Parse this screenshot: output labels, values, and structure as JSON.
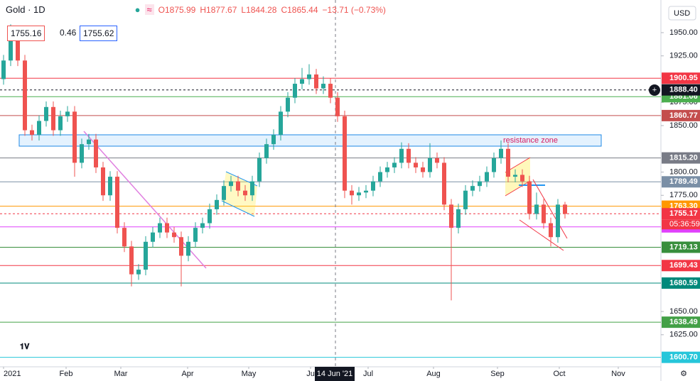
{
  "chart_data": {
    "type": "candlestick",
    "title": "Gold · 1D",
    "ohlc_legend": {
      "open": "O1875.99",
      "high": "H1877.67",
      "low": "L1844.28",
      "close": "C1865.44",
      "change": "−13.71 (−0.73%)"
    },
    "price_boxes": {
      "bid": "1755.16",
      "spread": "0.46",
      "ask": "1755.62"
    },
    "currency": "USD",
    "annotation": "resistance zone",
    "crosshair_date": "14 Jun '21",
    "countdown": "05:36:59",
    "up_color": "#26a69a",
    "down_color": "#ef5350",
    "open": [
      1900,
      1920,
      1945,
      1920,
      1845,
      1840,
      1855,
      1870,
      1845,
      1860,
      1865,
      1810,
      1830,
      1835,
      1805,
      1775,
      1795,
      1740,
      1720,
      1690,
      1695,
      1725,
      1735,
      1745,
      1735,
      1730,
      1710,
      1725,
      1740,
      1745,
      1760,
      1770,
      1785,
      1790,
      1780,
      1775,
      1790,
      1815,
      1830,
      1840,
      1865,
      1880,
      1895,
      1900,
      1905,
      1890,
      1895,
      1880,
      1860,
      1780,
      1775,
      1778,
      1780,
      1790,
      1800,
      1805,
      1810,
      1825,
      1810,
      1805,
      1800,
      1815,
      1810,
      1765,
      1740,
      1760,
      1780,
      1785,
      1790,
      1800,
      1815,
      1825,
      1795,
      1797,
      1790,
      1755,
      1765,
      1745,
      1730,
      1765
    ],
    "high": [
      1926,
      1959,
      1951,
      1926,
      1851,
      1861,
      1876,
      1876,
      1866,
      1871,
      1871,
      1836,
      1841,
      1841,
      1811,
      1801,
      1801,
      1746,
      1726,
      1701,
      1731,
      1741,
      1751,
      1751,
      1741,
      1736,
      1731,
      1746,
      1751,
      1766,
      1776,
      1791,
      1796,
      1796,
      1786,
      1796,
      1821,
      1836,
      1846,
      1871,
      1886,
      1901,
      1912,
      1916,
      1911,
      1903,
      1901,
      1886,
      1866,
      1786,
      1784,
      1786,
      1796,
      1806,
      1811,
      1816,
      1832,
      1831,
      1816,
      1811,
      1831,
      1821,
      1816,
      1771,
      1766,
      1786,
      1791,
      1796,
      1806,
      1821,
      1834,
      1831,
      1803,
      1803,
      1796,
      1778,
      1771,
      1751,
      1771,
      1768
    ],
    "low": [
      1894,
      1914,
      1914,
      1839,
      1834,
      1834,
      1849,
      1839,
      1839,
      1854,
      1795,
      1804,
      1824,
      1799,
      1769,
      1769,
      1734,
      1714,
      1677,
      1684,
      1689,
      1719,
      1729,
      1729,
      1724,
      1677,
      1704,
      1719,
      1734,
      1739,
      1754,
      1764,
      1779,
      1774,
      1769,
      1769,
      1784,
      1809,
      1824,
      1834,
      1859,
      1874,
      1889,
      1894,
      1884,
      1884,
      1874,
      1854,
      1772,
      1765,
      1769,
      1772,
      1774,
      1784,
      1794,
      1799,
      1804,
      1804,
      1799,
      1794,
      1794,
      1804,
      1759,
      1662,
      1734,
      1754,
      1774,
      1779,
      1784,
      1794,
      1809,
      1789,
      1789,
      1784,
      1749,
      1749,
      1739,
      1720,
      1724,
      1750
    ],
    "close": [
      1920,
      1945,
      1920,
      1845,
      1840,
      1855,
      1870,
      1845,
      1860,
      1865,
      1810,
      1830,
      1835,
      1805,
      1775,
      1795,
      1740,
      1720,
      1690,
      1695,
      1725,
      1735,
      1745,
      1735,
      1730,
      1710,
      1725,
      1740,
      1745,
      1760,
      1770,
      1785,
      1790,
      1780,
      1775,
      1790,
      1815,
      1830,
      1840,
      1865,
      1880,
      1895,
      1900,
      1905,
      1890,
      1895,
      1880,
      1860,
      1780,
      1775,
      1778,
      1780,
      1790,
      1800,
      1805,
      1810,
      1825,
      1810,
      1805,
      1800,
      1815,
      1810,
      1765,
      1740,
      1760,
      1780,
      1785,
      1790,
      1800,
      1815,
      1825,
      1795,
      1797,
      1790,
      1755,
      1765,
      1745,
      1730,
      1765,
      1755
    ],
    "xlim": [
      -0.5,
      92.5
    ],
    "xticks": [
      {
        "value": 0,
        "label": "2021"
      },
      {
        "value": 8.8,
        "label": "Feb"
      },
      {
        "value": 16.5,
        "label": "Mar"
      },
      {
        "value": 25.9,
        "label": "Apr"
      },
      {
        "value": 34.5,
        "label": "May"
      },
      {
        "value": 43.2,
        "label": "Ju"
      },
      {
        "value": 51.3,
        "label": "Jul"
      },
      {
        "value": 60.5,
        "label": "Aug"
      },
      {
        "value": 69.5,
        "label": "Sep"
      },
      {
        "value": 78.2,
        "label": "Oct"
      },
      {
        "value": 86.5,
        "label": "Nov"
      }
    ],
    "ylim": [
      1590.5,
      1985.1
    ],
    "yticks": [
      {
        "value": 1950,
        "label": "1950.00"
      },
      {
        "value": 1925,
        "label": "1925.00"
      },
      {
        "value": 1875,
        "label": "1875.00"
      },
      {
        "value": 1850,
        "label": "1850.00"
      },
      {
        "value": 1800,
        "label": "1800.00"
      },
      {
        "value": 1775,
        "label": "1775.00"
      },
      {
        "value": 1650,
        "label": "1650.00"
      },
      {
        "value": 1625,
        "label": "1625.00"
      }
    ],
    "levels": [
      {
        "value": 1900.95,
        "color": "#f23645"
      },
      {
        "value": 1881.06,
        "color": "#4caf50"
      },
      {
        "value": 1888.4,
        "label": "1888.40",
        "color": "#131722",
        "dashed": true
      },
      {
        "value": 1860.77,
        "color": "#c44d4d"
      },
      {
        "value": 1815.2,
        "label": "1815.20",
        "color": "#787b86"
      },
      {
        "value": 1789.49,
        "color": "#7a8fa6"
      },
      {
        "value": 1763.3,
        "label": "1763.30",
        "color": "#ff9800"
      },
      {
        "value": 1755.17,
        "color": "#f23645",
        "dashed": true
      },
      {
        "value": 1741.01,
        "color": "#e040fb"
      },
      {
        "value": 1719.13,
        "color": "#388e3c"
      },
      {
        "value": 1699.43,
        "color": "#f23645"
      },
      {
        "value": 1680.59,
        "color": "#00897b"
      },
      {
        "value": 1638.49,
        "color": "#43a047"
      },
      {
        "value": 1600.7,
        "label": "1600.70",
        "color": "#26c6da"
      }
    ]
  }
}
